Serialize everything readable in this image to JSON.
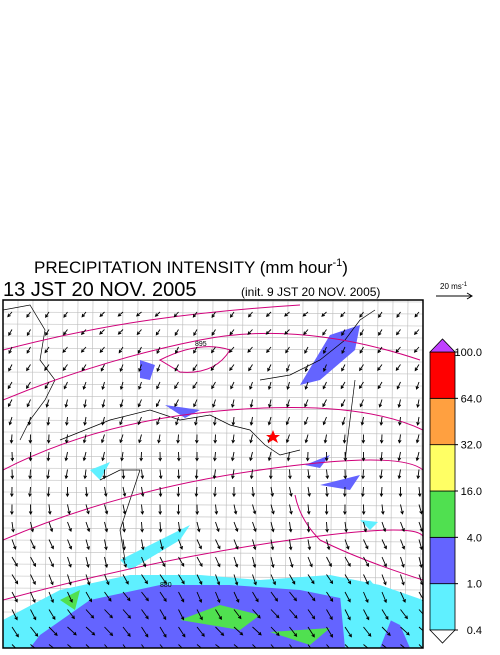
{
  "title": {
    "main": "PRECIPITATION INTENSITY (mm hour",
    "sup": "-1",
    "end": ")"
  },
  "time": "13 JST 20 NOV. 2005",
  "init": "(init. 9 JST 20 NOV. 2005)",
  "vector_scale": {
    "label": "20 ms",
    "sup": "-1"
  },
  "contour_labels": [
    "895",
    "880"
  ],
  "colorbar": {
    "levels": [
      {
        "value": 0.4,
        "label": "0.4"
      },
      {
        "value": 1,
        "label": "1.0"
      },
      {
        "value": 4,
        "label": "4.0"
      },
      {
        "value": 16,
        "label": "16.0"
      },
      {
        "value": 32,
        "label": "32.0"
      },
      {
        "value": 64,
        "label": "64.0"
      },
      {
        "value": 100,
        "label": "100.0"
      }
    ],
    "colors": [
      "#5ff0ff",
      "#6464ff",
      "#50e050",
      "#ffff64",
      "#ffa040",
      "#ff0000"
    ],
    "under_color": "#ffffff",
    "over_color": "#c040ff"
  }
}
